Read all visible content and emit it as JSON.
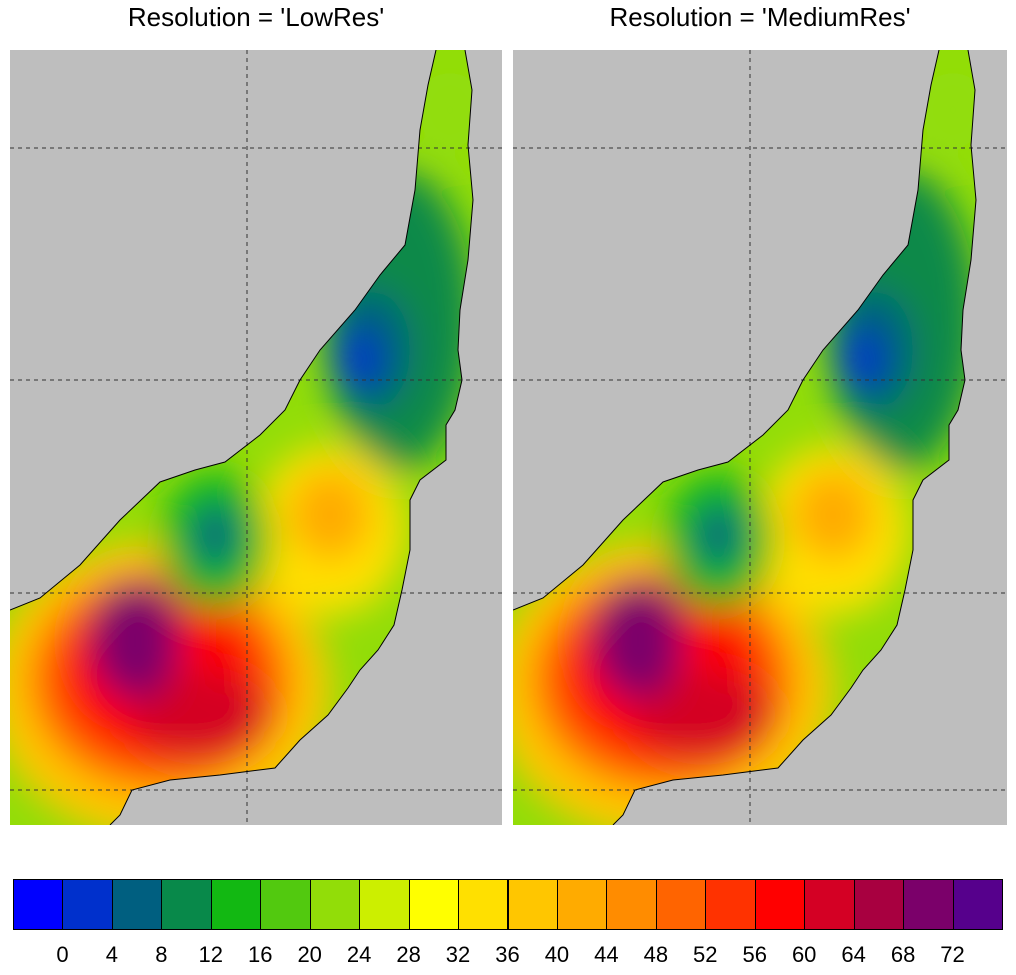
{
  "panels": [
    {
      "title": "Resolution = 'LowRes'"
    },
    {
      "title": "Resolution = 'MediumRes'"
    }
  ],
  "colorbar": {
    "colors": [
      "#0000ff",
      "#0030cc",
      "#005f80",
      "#08894a",
      "#12b812",
      "#52c90f",
      "#92dd08",
      "#ccef00",
      "#ffff00",
      "#ffe000",
      "#ffc600",
      "#ffab00",
      "#ff8c00",
      "#ff6400",
      "#ff3200",
      "#ff0000",
      "#d40024",
      "#a80040",
      "#7b006a",
      "#56008c"
    ],
    "tick_labels": [
      "0",
      "4",
      "8",
      "12",
      "16",
      "20",
      "24",
      "28",
      "32",
      "36",
      "40",
      "44",
      "48",
      "52",
      "56",
      "60",
      "64",
      "68",
      "72"
    ]
  },
  "map_colors": {
    "land": "#bebebe",
    "missing": "#ffffff",
    "coastline": "#000000",
    "grid": "#333333"
  }
}
